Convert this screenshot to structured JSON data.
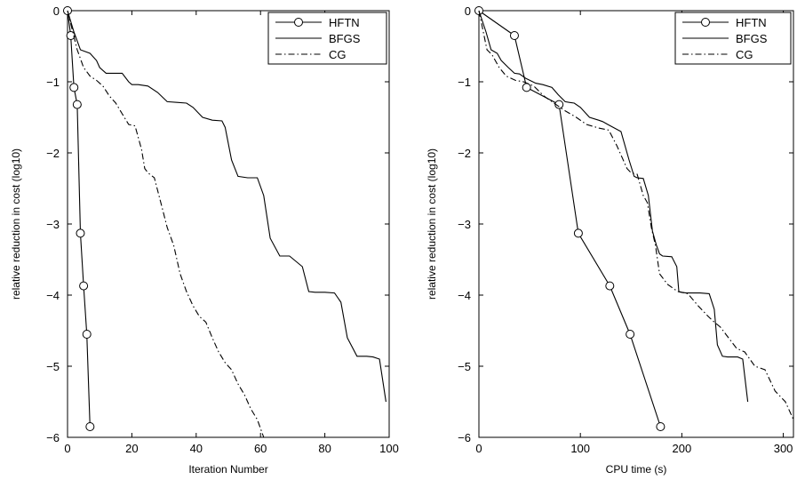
{
  "chart_data": [
    {
      "type": "line",
      "title": "",
      "xlabel": "Iteration Number",
      "ylabel": "relative reduction in cost (log10)",
      "xlim": [
        0,
        100
      ],
      "ylim": [
        -6,
        0
      ],
      "xticks": [
        "0",
        "20",
        "40",
        "60",
        "80",
        "100"
      ],
      "yticks": [
        "0",
        "−1",
        "−2",
        "−3",
        "−4",
        "−5",
        "−6"
      ],
      "grid": false,
      "legend": "top-right",
      "series": [
        {
          "name": "HFTN",
          "style": "solid-circles",
          "x": [
            0,
            1,
            2,
            3,
            4,
            5,
            6,
            7
          ],
          "y": [
            0,
            -0.35,
            -1.08,
            -1.32,
            -3.13,
            -3.87,
            -4.55,
            -5.85
          ]
        },
        {
          "name": "BFGS",
          "style": "solid",
          "x": [
            0,
            2,
            4,
            7,
            9,
            10,
            12,
            14,
            17,
            19,
            20,
            22,
            25,
            28,
            31,
            34,
            37,
            39,
            42,
            45,
            48,
            49,
            51,
            53,
            56,
            59,
            61,
            63,
            66,
            69,
            73,
            75,
            77,
            80,
            83,
            85,
            87,
            90,
            93,
            95,
            97,
            99
          ],
          "y": [
            0,
            -0.3,
            -0.55,
            -0.6,
            -0.7,
            -0.8,
            -0.88,
            -0.88,
            -0.88,
            -1.0,
            -1.04,
            -1.04,
            -1.06,
            -1.15,
            -1.28,
            -1.29,
            -1.3,
            -1.36,
            -1.5,
            -1.54,
            -1.55,
            -1.64,
            -2.1,
            -2.33,
            -2.35,
            -2.35,
            -2.6,
            -3.2,
            -3.45,
            -3.45,
            -3.6,
            -3.95,
            -3.96,
            -3.96,
            -3.97,
            -4.1,
            -4.6,
            -4.86,
            -4.86,
            -4.87,
            -4.9,
            -5.5
          ]
        },
        {
          "name": "CG",
          "style": "dash-dot",
          "x": [
            0,
            3,
            5,
            7,
            9,
            11,
            13,
            15,
            17,
            19,
            21,
            23,
            24,
            25,
            27,
            29,
            31,
            33,
            35,
            37,
            39,
            41,
            43,
            45,
            47,
            49,
            51,
            53,
            55,
            57,
            59,
            61
          ],
          "y": [
            0,
            -0.55,
            -0.8,
            -0.92,
            -0.98,
            -1.06,
            -1.2,
            -1.3,
            -1.45,
            -1.6,
            -1.62,
            -1.95,
            -2.22,
            -2.28,
            -2.35,
            -2.7,
            -3.05,
            -3.3,
            -3.7,
            -3.95,
            -4.15,
            -4.3,
            -4.38,
            -4.6,
            -4.8,
            -4.95,
            -5.05,
            -5.25,
            -5.4,
            -5.6,
            -5.75,
            -6.0
          ]
        }
      ]
    },
    {
      "type": "line",
      "title": "",
      "xlabel": "CPU time (s)",
      "ylabel": "relative reduction in cost (log10)",
      "xlim": [
        0,
        310
      ],
      "ylim": [
        -6,
        0
      ],
      "xticks": [
        "0",
        "100",
        "200",
        "300"
      ],
      "yticks": [
        "0",
        "−1",
        "−2",
        "−3",
        "−4",
        "−5",
        "−6"
      ],
      "grid": false,
      "legend": "top-right",
      "series": [
        {
          "name": "HFTN",
          "style": "solid-circles",
          "x": [
            0,
            35,
            47,
            79,
            98,
            129,
            149,
            179
          ],
          "y": [
            0,
            -0.35,
            -1.08,
            -1.32,
            -3.13,
            -3.87,
            -4.55,
            -5.85
          ]
        },
        {
          "name": "BFGS",
          "style": "solid",
          "x": [
            0,
            7,
            12,
            18,
            22,
            29,
            35,
            40,
            46,
            56,
            63,
            72,
            78,
            85,
            89,
            94,
            100,
            109,
            118,
            122,
            127,
            140,
            148,
            153,
            156,
            162,
            167,
            171,
            175,
            178,
            181,
            190,
            195,
            197,
            200,
            204,
            210,
            218,
            227,
            232,
            235,
            240,
            245,
            255,
            260,
            265
          ],
          "y": [
            0,
            -0.3,
            -0.55,
            -0.6,
            -0.7,
            -0.8,
            -0.88,
            -0.89,
            -0.95,
            -1.02,
            -1.04,
            -1.08,
            -1.18,
            -1.28,
            -1.29,
            -1.3,
            -1.36,
            -1.5,
            -1.54,
            -1.56,
            -1.6,
            -1.7,
            -2.1,
            -2.33,
            -2.35,
            -2.36,
            -2.6,
            -3.1,
            -3.3,
            -3.42,
            -3.45,
            -3.46,
            -3.6,
            -3.95,
            -3.96,
            -3.97,
            -3.97,
            -3.97,
            -3.98,
            -4.2,
            -4.7,
            -4.86,
            -4.87,
            -4.87,
            -4.9,
            -5.5
          ]
        },
        {
          "name": "CG",
          "style": "dash-dot",
          "x": [
            0,
            8,
            13,
            20,
            27,
            36,
            44,
            54,
            64,
            74,
            84,
            96,
            106,
            118,
            128,
            136,
            146,
            150,
            156,
            162,
            166,
            170,
            174,
            178,
            186,
            196,
            206,
            216,
            226,
            232,
            238,
            246,
            254,
            262,
            272,
            282,
            292,
            302,
            310
          ],
          "y": [
            0,
            -0.55,
            -0.62,
            -0.8,
            -0.92,
            -0.98,
            -1.0,
            -1.06,
            -1.2,
            -1.3,
            -1.4,
            -1.5,
            -1.6,
            -1.65,
            -1.68,
            -1.9,
            -2.22,
            -2.28,
            -2.3,
            -2.6,
            -2.7,
            -3.05,
            -3.3,
            -3.7,
            -3.85,
            -3.95,
            -3.98,
            -4.15,
            -4.3,
            -4.38,
            -4.45,
            -4.6,
            -4.75,
            -4.8,
            -5.0,
            -5.05,
            -5.35,
            -5.5,
            -5.75
          ]
        }
      ]
    }
  ]
}
